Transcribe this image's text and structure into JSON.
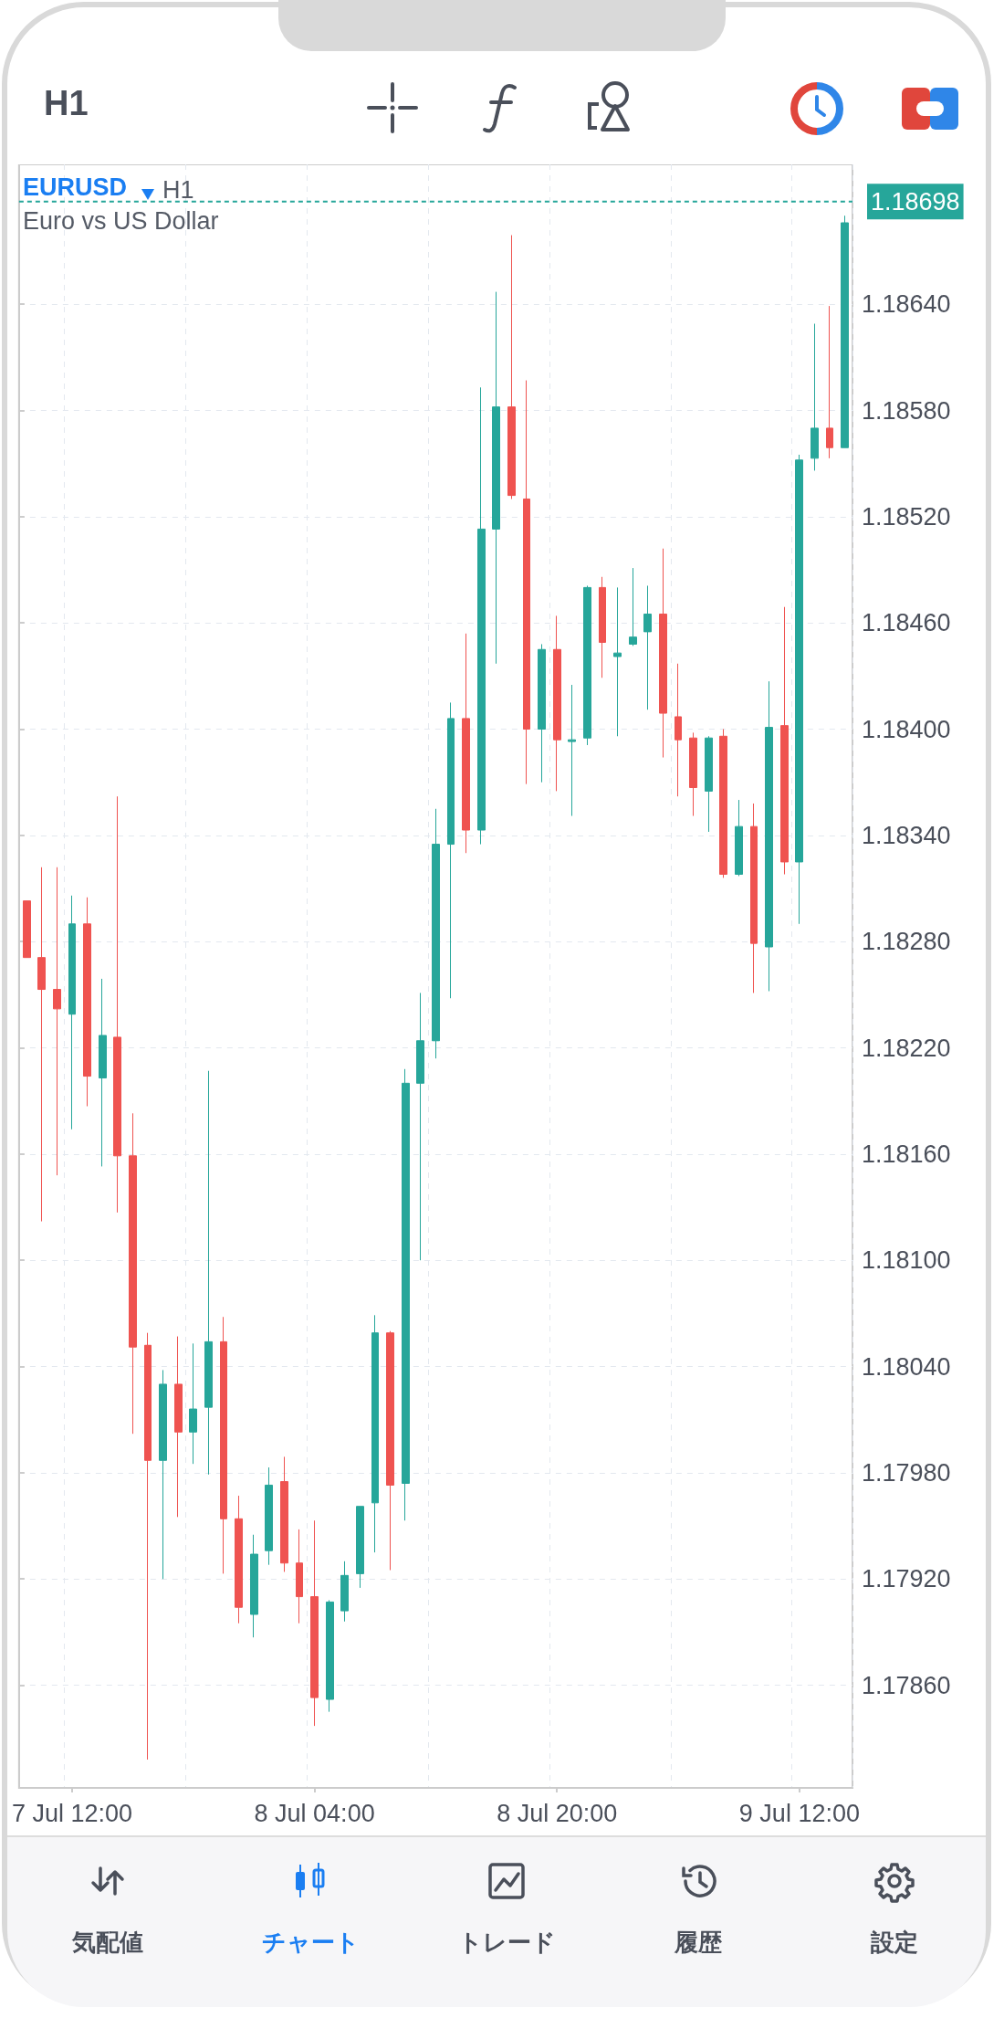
{
  "chart_data": {
    "type": "candlestick",
    "title": "EURUSD",
    "subtitle": "Euro vs US Dollar",
    "annotations": [
      "H1",
      "H1",
      "気配値",
      "チャート",
      "トレード",
      "履歴",
      "設定"
    ],
    "categories": [
      null,
      null,
      null,
      "7 Jul 12:00",
      null,
      null,
      null,
      null,
      null,
      null,
      null,
      null,
      null,
      null,
      null,
      null,
      null,
      null,
      null,
      "8 Jul 04:00",
      null,
      null,
      null,
      null,
      null,
      null,
      null,
      null,
      null,
      null,
      null,
      null,
      null,
      null,
      null,
      "8 Jul 20:00",
      null,
      null,
      null,
      null,
      null,
      null,
      null,
      null,
      null,
      null,
      null,
      null,
      null,
      null,
      null,
      "9 Jul 12:00",
      null,
      null,
      null
    ],
    "ohlc": [
      [
        1.18303,
        1.18303,
        1.18271,
        1.18271
      ],
      [
        1.18271,
        1.18322,
        1.18122,
        1.18253
      ],
      [
        1.18253,
        1.18322,
        1.18148,
        1.18242
      ],
      [
        1.18239,
        1.18306,
        1.18174,
        1.1829
      ],
      [
        1.1829,
        1.18305,
        1.18187,
        1.18204
      ],
      [
        1.18203,
        1.18259,
        1.18153,
        1.18227
      ],
      [
        1.18226,
        1.18362,
        1.18127,
        1.18159
      ],
      [
        1.18159,
        1.18183,
        1.18002,
        1.18051
      ],
      [
        1.18052,
        1.18059,
        1.17818,
        1.17987
      ],
      [
        1.17987,
        1.18038,
        1.1792,
        1.1803
      ],
      [
        1.1803,
        1.18057,
        1.17955,
        1.18003
      ],
      [
        1.18003,
        1.18053,
        1.17985,
        1.18016
      ],
      [
        1.18017,
        1.18207,
        1.17979,
        1.18054
      ],
      [
        1.18054,
        1.18068,
        1.17923,
        1.17954
      ],
      [
        1.17954,
        1.17967,
        1.17895,
        1.17904
      ],
      [
        1.179,
        1.17945,
        1.17887,
        1.17934
      ],
      [
        1.17936,
        1.17983,
        1.17928,
        1.17973
      ],
      [
        1.17975,
        1.17989,
        1.17924,
        1.17929
      ],
      [
        1.17929,
        1.17948,
        1.17895,
        1.1791
      ],
      [
        1.1791,
        1.17953,
        1.17837,
        1.17853
      ],
      [
        1.17852,
        1.17908,
        1.17845,
        1.17907
      ],
      [
        1.17902,
        1.1793,
        1.17896,
        1.17922
      ],
      [
        1.17923,
        1.17961,
        1.17915,
        1.17961
      ],
      [
        1.17963,
        1.18069,
        1.17935,
        1.18059
      ],
      [
        1.18059,
        1.1806,
        1.17925,
        1.17973
      ],
      [
        1.17974,
        1.18208,
        1.17953,
        1.182
      ],
      [
        1.182,
        1.18251,
        1.181,
        1.18224
      ],
      [
        1.18224,
        1.18355,
        1.18214,
        1.18335
      ],
      [
        1.18335,
        1.18415,
        1.18248,
        1.18406
      ],
      [
        1.18406,
        1.18454,
        1.1833,
        1.18343
      ],
      [
        1.18343,
        1.18593,
        1.18335,
        1.18513
      ],
      [
        1.18513,
        1.18647,
        1.18437,
        1.18582
      ],
      [
        1.18582,
        1.18679,
        1.1853,
        1.18532
      ],
      [
        1.1853,
        1.18597,
        1.18369,
        1.184
      ],
      [
        1.184,
        1.18448,
        1.1837,
        1.18445
      ],
      [
        1.18445,
        1.18464,
        1.18365,
        1.18394
      ],
      [
        1.18393,
        1.18425,
        1.18351,
        1.18394
      ],
      [
        1.18395,
        1.18481,
        1.18391,
        1.1848
      ],
      [
        1.1848,
        1.18486,
        1.18429,
        1.18449
      ],
      [
        1.18441,
        1.1848,
        1.18396,
        1.18443
      ],
      [
        1.18448,
        1.18491,
        1.18447,
        1.18452
      ],
      [
        1.18455,
        1.18481,
        1.18411,
        1.18465
      ],
      [
        1.18465,
        1.18502,
        1.18384,
        1.18409
      ],
      [
        1.18407,
        1.18437,
        1.18362,
        1.18394
      ],
      [
        1.18395,
        1.18398,
        1.18351,
        1.18367
      ],
      [
        1.18365,
        1.18396,
        1.18342,
        1.18395
      ],
      [
        1.18396,
        1.184,
        1.18316,
        1.18318
      ],
      [
        1.18318,
        1.1836,
        1.18317,
        1.18345
      ],
      [
        1.18345,
        1.18358,
        1.18251,
        1.18279
      ],
      [
        1.18277,
        1.18427,
        1.18252,
        1.18401
      ],
      [
        1.18402,
        1.18469,
        1.18318,
        1.18325
      ],
      [
        1.18325,
        1.18555,
        1.1829,
        1.18552
      ],
      [
        1.18553,
        1.18629,
        1.18546,
        1.1857
      ],
      [
        1.1857,
        1.18639,
        1.18553,
        1.18559
      ],
      [
        1.18559,
        1.1869,
        1.18559,
        1.18686
      ]
    ],
    "colors": [
      "#ef5350",
      "#ef5350",
      "#ef5350",
      "#26a69a",
      "#ef5350",
      "#26a69a",
      "#ef5350",
      "#ef5350",
      "#ef5350",
      "#26a69a",
      "#ef5350",
      "#26a69a",
      "#26a69a",
      "#ef5350",
      "#ef5350",
      "#26a69a",
      "#26a69a",
      "#ef5350",
      "#ef5350",
      "#ef5350",
      "#26a69a",
      "#26a69a",
      "#26a69a",
      "#26a69a",
      "#ef5350",
      "#26a69a",
      "#26a69a",
      "#26a69a",
      "#26a69a",
      "#ef5350",
      "#26a69a",
      "#26a69a",
      "#ef5350",
      "#ef5350",
      "#26a69a",
      "#ef5350",
      "#26a69a",
      "#26a69a",
      "#ef5350",
      "#26a69a",
      "#26a69a",
      "#26a69a",
      "#ef5350",
      "#ef5350",
      "#ef5350",
      "#26a69a",
      "#ef5350",
      "#26a69a",
      "#ef5350",
      "#26a69a",
      "#ef5350",
      "#26a69a",
      "#26a69a",
      "#ef5350",
      "#26a69a"
    ],
    "ylim": [
      1.17802,
      1.18719
    ],
    "yticks": [
      {
        "value": 1.1786,
        "label": "1.17860"
      },
      {
        "value": 1.1792,
        "label": "1.17920"
      },
      {
        "value": 1.1798,
        "label": "1.17980"
      },
      {
        "value": 1.1804,
        "label": "1.18040"
      },
      {
        "value": 1.181,
        "label": "1.18100"
      },
      {
        "value": 1.1816,
        "label": "1.18160"
      },
      {
        "value": 1.1822,
        "label": "1.18220"
      },
      {
        "value": 1.1828,
        "label": "1.18280"
      },
      {
        "value": 1.1834,
        "label": "1.18340"
      },
      {
        "value": 1.184,
        "label": "1.18400"
      },
      {
        "value": 1.1846,
        "label": "1.18460"
      },
      {
        "value": 1.1852,
        "label": "1.18520"
      },
      {
        "value": 1.1858,
        "label": "1.18580"
      },
      {
        "value": 1.1864,
        "label": "1.18640"
      }
    ],
    "ref_lines": [
      {
        "axis": "y",
        "value": 1.18698,
        "label": "1.18698",
        "color": "#26a69a",
        "line_style": "dashed"
      }
    ],
    "grid": true
  }
}
